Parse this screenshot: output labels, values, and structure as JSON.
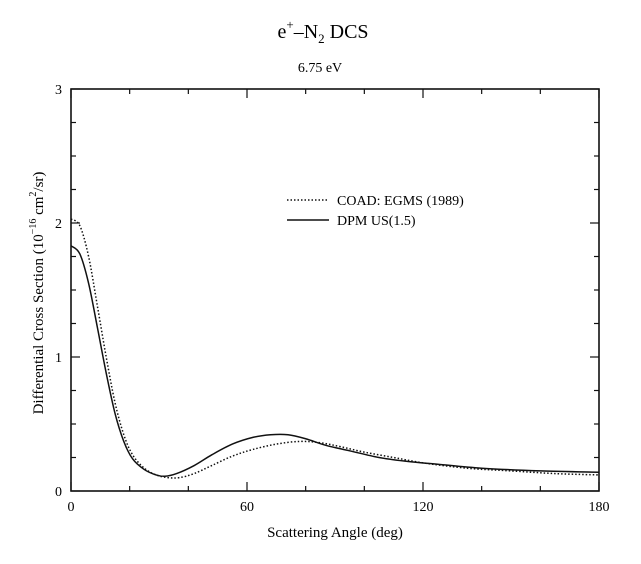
{
  "chart_data": {
    "type": "line",
    "title": {
      "base": "e",
      "sup": "+",
      "dash": "–N",
      "sub": "2",
      "tail": " DCS"
    },
    "subtitle": "6.75 eV",
    "xlabel": "Scattering Angle (deg)",
    "ylabel": {
      "pre": "Differential Cross Section (10",
      "exp1": "−16",
      "mid": " cm",
      "exp2": "2",
      "post": "/sr)"
    },
    "xlim": [
      0,
      180
    ],
    "ylim": [
      0,
      3
    ],
    "x_ticks": [
      0,
      60,
      120,
      180
    ],
    "y_ticks": [
      0,
      1,
      2,
      3
    ],
    "legend_position": "upper-right",
    "series": [
      {
        "name": "COAD: EGMS (1989)",
        "style": "dotted",
        "points": [
          [
            0,
            2.03
          ],
          [
            3,
            1.98
          ],
          [
            6,
            1.75
          ],
          [
            9,
            1.38
          ],
          [
            12,
            1.0
          ],
          [
            15,
            0.66
          ],
          [
            18,
            0.42
          ],
          [
            21,
            0.27
          ],
          [
            25,
            0.17
          ],
          [
            29,
            0.12
          ],
          [
            33,
            0.1
          ],
          [
            37,
            0.1
          ],
          [
            42,
            0.13
          ],
          [
            48,
            0.19
          ],
          [
            55,
            0.26
          ],
          [
            62,
            0.31
          ],
          [
            70,
            0.35
          ],
          [
            78,
            0.37
          ],
          [
            85,
            0.36
          ],
          [
            92,
            0.33
          ],
          [
            100,
            0.29
          ],
          [
            110,
            0.25
          ],
          [
            120,
            0.21
          ],
          [
            135,
            0.17
          ],
          [
            150,
            0.15
          ],
          [
            165,
            0.13
          ],
          [
            180,
            0.12
          ]
        ]
      },
      {
        "name": "DPM US(1.5)",
        "style": "solid",
        "points": [
          [
            0,
            1.83
          ],
          [
            3,
            1.77
          ],
          [
            6,
            1.55
          ],
          [
            9,
            1.22
          ],
          [
            12,
            0.88
          ],
          [
            15,
            0.58
          ],
          [
            18,
            0.37
          ],
          [
            21,
            0.24
          ],
          [
            25,
            0.16
          ],
          [
            29,
            0.12
          ],
          [
            32,
            0.11
          ],
          [
            36,
            0.13
          ],
          [
            42,
            0.19
          ],
          [
            48,
            0.27
          ],
          [
            55,
            0.35
          ],
          [
            62,
            0.4
          ],
          [
            68,
            0.42
          ],
          [
            74,
            0.42
          ],
          [
            80,
            0.39
          ],
          [
            87,
            0.34
          ],
          [
            95,
            0.3
          ],
          [
            105,
            0.25
          ],
          [
            115,
            0.22
          ],
          [
            125,
            0.2
          ],
          [
            140,
            0.17
          ],
          [
            160,
            0.15
          ],
          [
            180,
            0.14
          ]
        ]
      }
    ]
  }
}
